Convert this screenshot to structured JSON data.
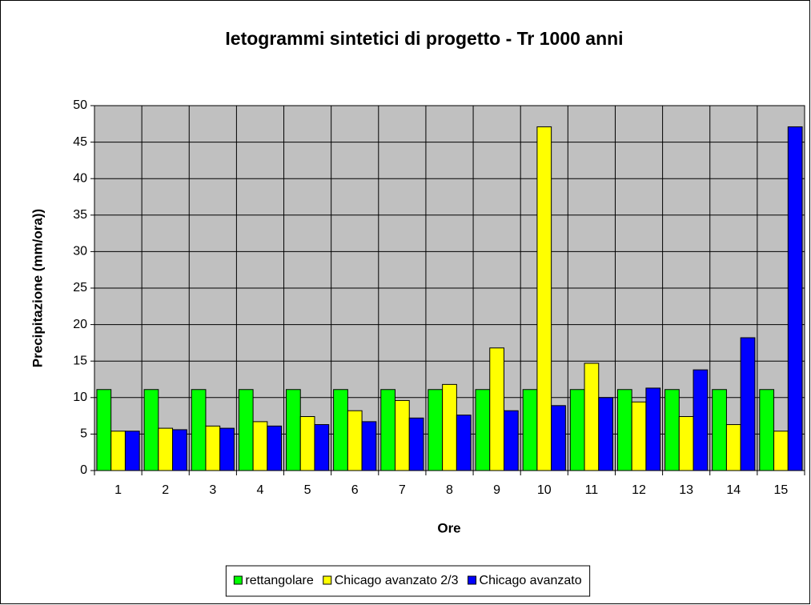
{
  "chart_data": {
    "type": "bar",
    "title": "Ietogrammi sintetici di progetto - Tr 1000 anni",
    "x_label": "Ore",
    "y_label": "Precipitazione (mm/ora))",
    "categories": [
      "1",
      "2",
      "3",
      "4",
      "5",
      "6",
      "7",
      "8",
      "9",
      "10",
      "11",
      "12",
      "13",
      "14",
      "15"
    ],
    "series": [
      {
        "name": "rettangolare",
        "color": "#00ff00",
        "values": [
          11.1,
          11.1,
          11.1,
          11.1,
          11.1,
          11.1,
          11.1,
          11.1,
          11.1,
          11.1,
          11.1,
          11.1,
          11.1,
          11.1,
          11.1
        ]
      },
      {
        "name": "Chicago avanzato 2/3",
        "color": "#ffff00",
        "values": [
          5.4,
          5.8,
          6.1,
          6.7,
          7.4,
          8.2,
          9.6,
          11.8,
          16.8,
          47.1,
          14.7,
          9.4,
          7.4,
          6.3,
          5.4
        ]
      },
      {
        "name": "Chicago avanzato",
        "color": "#0000ff",
        "values": [
          5.4,
          5.6,
          5.8,
          6.1,
          6.3,
          6.7,
          7.2,
          7.6,
          8.2,
          8.9,
          10.0,
          11.3,
          13.8,
          18.2,
          47.1
        ]
      }
    ],
    "ylim": [
      0,
      50
    ],
    "yticks": [
      0,
      5,
      10,
      15,
      20,
      25,
      30,
      35,
      40,
      45,
      50
    ],
    "grid": true,
    "plot_background": "#c0c0c0",
    "legend": "bottom"
  }
}
